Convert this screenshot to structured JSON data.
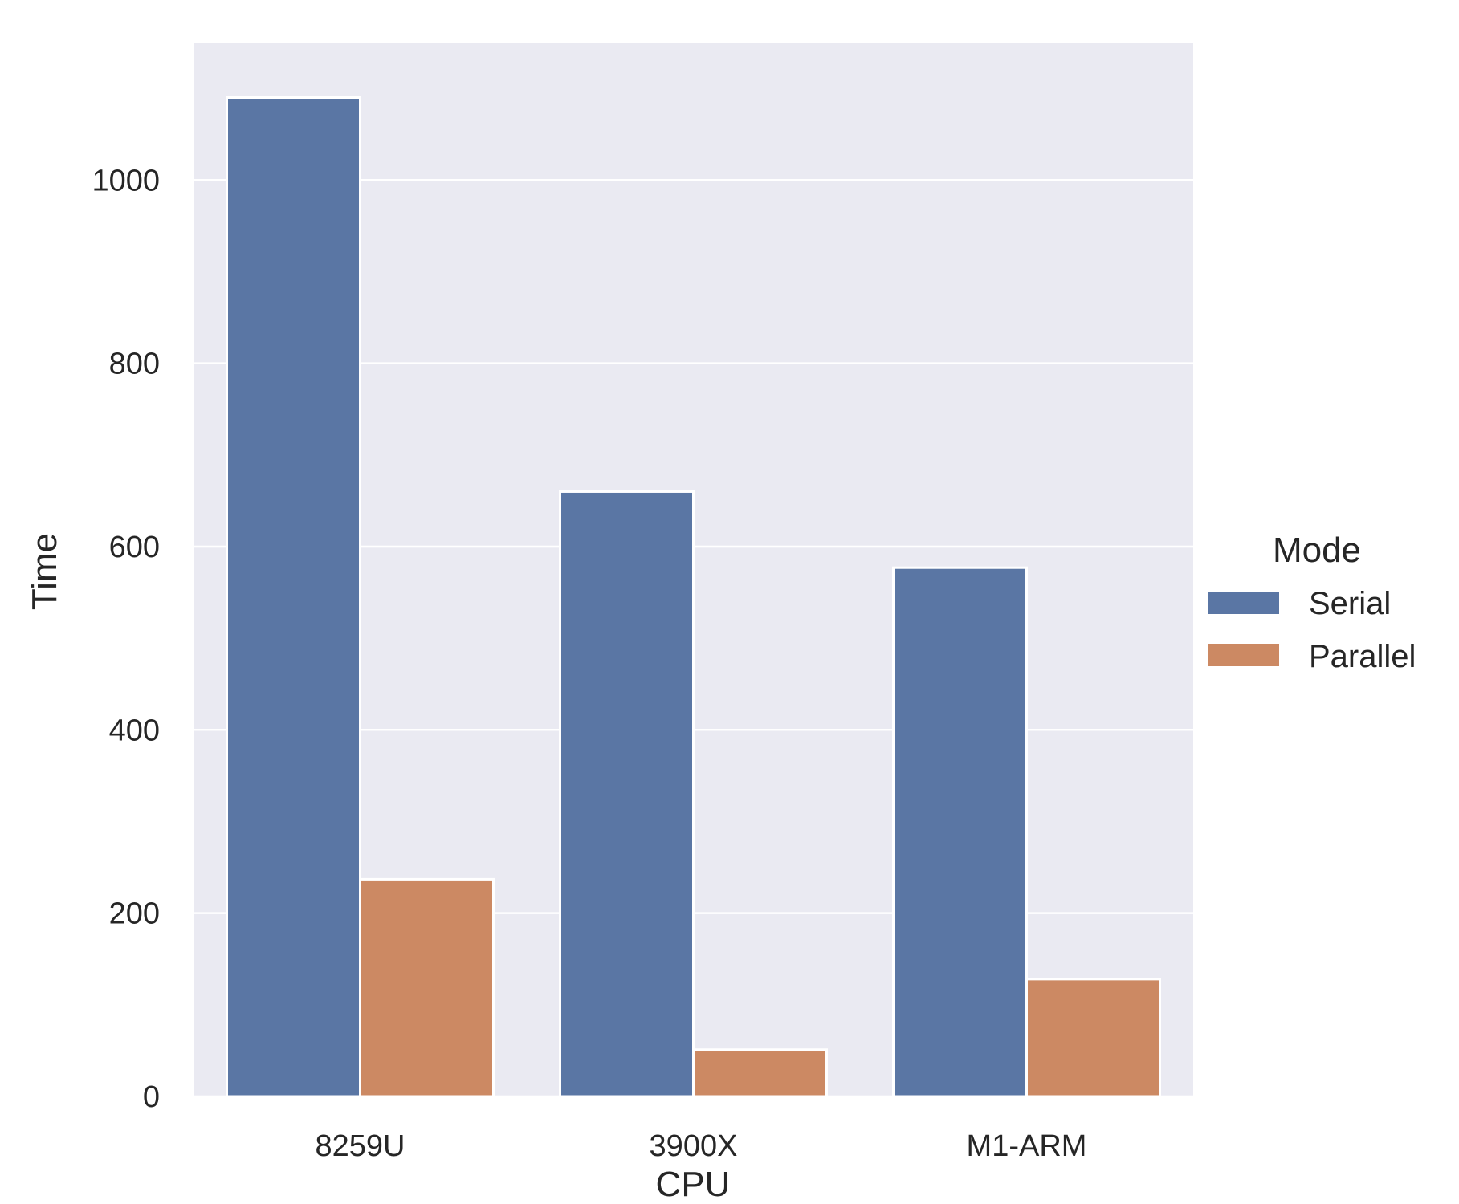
{
  "chart_data": {
    "type": "bar",
    "categories": [
      "8259U",
      "3900X",
      "M1-ARM"
    ],
    "series": [
      {
        "name": "Serial",
        "values": [
          1090,
          660,
          577
        ],
        "color": "#5a76a4"
      },
      {
        "name": "Parallel",
        "values": [
          237,
          51,
          128
        ],
        "color": "#cc8963"
      }
    ],
    "xlabel": "CPU",
    "ylabel": "Time",
    "ylim": [
      0,
      1150
    ],
    "yticks": [
      0,
      200,
      400,
      600,
      800,
      1000
    ],
    "grid": true,
    "legend": {
      "title": "Mode",
      "placement": "right"
    },
    "background_color": "#eaeaf2"
  }
}
